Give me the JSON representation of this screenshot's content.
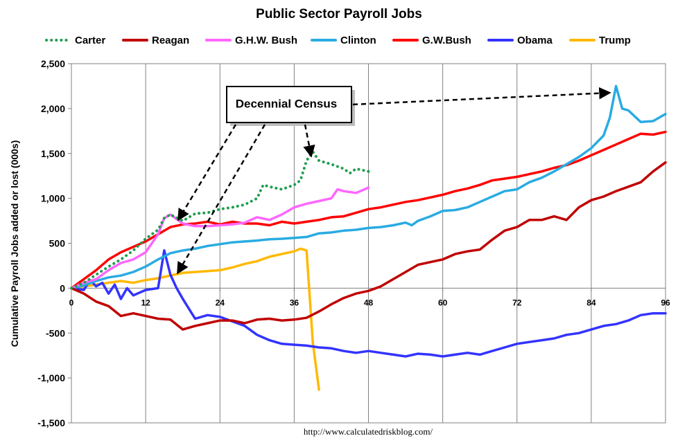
{
  "chart_data": {
    "type": "line",
    "title": "Public Sector Payroll Jobs",
    "ylabel": "Cumulative Payroll Jobs added or lost (000s)",
    "xlabel": "",
    "source": "http://www.calculatedriskblog.com/",
    "annotation": "Decennial Census",
    "xlim": [
      0,
      96
    ],
    "ylim": [
      -1500,
      2500
    ],
    "x_ticks": [
      0,
      12,
      24,
      36,
      48,
      60,
      72,
      84,
      96
    ],
    "y_ticks": [
      -1500,
      -1000,
      -500,
      0,
      500,
      1000,
      1500,
      2000,
      2500
    ],
    "y_tick_labels": [
      "-1,500",
      "-1,000",
      "-500",
      "0",
      "500",
      "1,000",
      "1,500",
      "2,000",
      "2,500"
    ],
    "grid": "vertical",
    "legend_position": "top",
    "series": [
      {
        "name": "Carter",
        "color": "#1f9e50",
        "dash": "dotted",
        "x": [
          0,
          2,
          4,
          6,
          8,
          10,
          12,
          14,
          15,
          16,
          18,
          20,
          22,
          24,
          26,
          28,
          30,
          31,
          32,
          34,
          36,
          37,
          38,
          39,
          40,
          42,
          44,
          45,
          46,
          48
        ],
        "y": [
          0,
          60,
          150,
          240,
          320,
          420,
          550,
          650,
          780,
          820,
          750,
          830,
          840,
          880,
          900,
          930,
          1000,
          1150,
          1130,
          1100,
          1150,
          1200,
          1420,
          1520,
          1420,
          1380,
          1330,
          1280,
          1330,
          1300
        ]
      },
      {
        "name": "Reagan",
        "color": "#c00000",
        "dash": "solid",
        "x": [
          0,
          2,
          4,
          6,
          8,
          10,
          12,
          14,
          16,
          18,
          20,
          22,
          24,
          26,
          28,
          30,
          32,
          34,
          36,
          38,
          40,
          42,
          44,
          46,
          48,
          50,
          52,
          54,
          56,
          58,
          60,
          62,
          64,
          66,
          68,
          70,
          72,
          74,
          76,
          78,
          80,
          82,
          84,
          86,
          88,
          90,
          92,
          94,
          96
        ],
        "y": [
          0,
          -60,
          -150,
          -200,
          -310,
          -280,
          -310,
          -340,
          -350,
          -460,
          -420,
          -390,
          -360,
          -360,
          -390,
          -350,
          -340,
          -360,
          -350,
          -330,
          -260,
          -180,
          -110,
          -60,
          -30,
          20,
          100,
          180,
          260,
          290,
          320,
          380,
          410,
          430,
          540,
          640,
          680,
          760,
          760,
          800,
          760,
          900,
          980,
          1020,
          1080,
          1130,
          1180,
          1300,
          1400
        ]
      },
      {
        "name": "G.H.W. Bush",
        "color": "#ff66ff",
        "dash": "solid",
        "x": [
          0,
          2,
          4,
          6,
          8,
          10,
          12,
          14,
          15,
          16,
          18,
          20,
          22,
          24,
          26,
          28,
          30,
          32,
          34,
          36,
          38,
          40,
          42,
          43,
          44,
          46,
          48
        ],
        "y": [
          0,
          60,
          100,
          200,
          280,
          320,
          400,
          600,
          780,
          820,
          720,
          690,
          690,
          700,
          710,
          730,
          790,
          760,
          820,
          900,
          940,
          970,
          1000,
          1100,
          1080,
          1060,
          1120
        ]
      },
      {
        "name": "Clinton",
        "color": "#29abe2",
        "dash": "solid",
        "x": [
          0,
          2,
          4,
          6,
          8,
          10,
          12,
          14,
          16,
          18,
          20,
          22,
          24,
          26,
          28,
          30,
          32,
          34,
          36,
          38,
          40,
          42,
          44,
          46,
          48,
          50,
          52,
          54,
          55,
          56,
          58,
          60,
          62,
          64,
          66,
          68,
          70,
          72,
          74,
          76,
          78,
          80,
          82,
          84,
          86,
          87,
          88,
          89,
          90,
          92,
          94,
          96
        ],
        "y": [
          0,
          30,
          80,
          120,
          140,
          180,
          240,
          320,
          390,
          420,
          440,
          470,
          490,
          510,
          520,
          530,
          545,
          550,
          560,
          570,
          610,
          620,
          640,
          650,
          670,
          680,
          700,
          730,
          700,
          750,
          800,
          860,
          870,
          900,
          960,
          1020,
          1080,
          1100,
          1180,
          1230,
          1300,
          1380,
          1460,
          1560,
          1700,
          1900,
          2250,
          2000,
          1980,
          1850,
          1860,
          1940
        ]
      },
      {
        "name": "G.W.Bush",
        "color": "#ff0000",
        "dash": "solid",
        "x": [
          0,
          2,
          4,
          6,
          8,
          10,
          12,
          14,
          16,
          18,
          20,
          22,
          24,
          26,
          28,
          30,
          32,
          34,
          36,
          38,
          40,
          42,
          44,
          46,
          48,
          50,
          52,
          54,
          56,
          58,
          60,
          62,
          64,
          66,
          68,
          70,
          72,
          74,
          76,
          78,
          80,
          82,
          84,
          86,
          88,
          90,
          92,
          94,
          96
        ],
        "y": [
          0,
          100,
          200,
          320,
          400,
          460,
          520,
          600,
          680,
          710,
          720,
          740,
          710,
          740,
          720,
          720,
          700,
          740,
          720,
          740,
          760,
          790,
          800,
          840,
          880,
          900,
          930,
          960,
          980,
          1010,
          1040,
          1080,
          1110,
          1150,
          1200,
          1220,
          1240,
          1270,
          1300,
          1340,
          1370,
          1420,
          1480,
          1540,
          1600,
          1660,
          1720,
          1710,
          1740
        ]
      },
      {
        "name": "Obama",
        "color": "#3333ff",
        "dash": "solid",
        "x": [
          0,
          2,
          3,
          4,
          5,
          6,
          7,
          8,
          9,
          10,
          12,
          14,
          15,
          16,
          17,
          18,
          20,
          22,
          24,
          26,
          28,
          30,
          32,
          34,
          36,
          38,
          40,
          42,
          44,
          46,
          48,
          50,
          52,
          54,
          56,
          58,
          60,
          62,
          64,
          66,
          68,
          70,
          72,
          74,
          76,
          78,
          80,
          82,
          84,
          86,
          88,
          90,
          92,
          94,
          96
        ],
        "y": [
          0,
          -20,
          90,
          20,
          60,
          -60,
          40,
          -120,
          0,
          -80,
          -20,
          0,
          420,
          150,
          0,
          -120,
          -340,
          -300,
          -320,
          -370,
          -420,
          -520,
          -580,
          -620,
          -630,
          -640,
          -660,
          -670,
          -700,
          -720,
          -700,
          -720,
          -740,
          -760,
          -730,
          -740,
          -760,
          -740,
          -720,
          -740,
          -700,
          -660,
          -620,
          -600,
          -580,
          -560,
          -520,
          -500,
          -460,
          -420,
          -400,
          -360,
          -300,
          -280,
          -280
        ]
      },
      {
        "name": "Trump",
        "color": "#ffb900",
        "dash": "solid",
        "x": [
          0,
          2,
          4,
          6,
          8,
          10,
          12,
          14,
          16,
          18,
          20,
          22,
          24,
          26,
          28,
          30,
          32,
          34,
          36,
          37,
          38,
          39,
          40
        ],
        "y": [
          0,
          20,
          40,
          60,
          80,
          60,
          90,
          110,
          140,
          170,
          180,
          190,
          200,
          230,
          270,
          300,
          350,
          380,
          410,
          440,
          420,
          -600,
          -1130
        ]
      }
    ]
  }
}
